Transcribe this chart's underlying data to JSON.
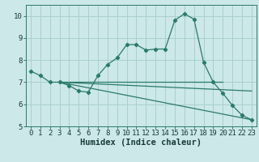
{
  "title": "",
  "xlabel": "Humidex (Indice chaleur)",
  "background_color": "#cce8e8",
  "grid_color": "#aacfcf",
  "line_color": "#2a7a6a",
  "ylim": [
    5,
    10.5
  ],
  "xlim": [
    -0.5,
    23.5
  ],
  "yticks": [
    5,
    6,
    7,
    8,
    9,
    10
  ],
  "xticks": [
    0,
    1,
    2,
    3,
    4,
    5,
    6,
    7,
    8,
    9,
    10,
    11,
    12,
    13,
    14,
    15,
    16,
    17,
    18,
    19,
    20,
    21,
    22,
    23
  ],
  "line1_x": [
    0,
    1,
    2,
    3,
    4,
    5,
    6,
    7,
    8,
    9,
    10,
    11,
    12,
    13,
    14,
    15,
    16,
    17,
    18,
    19,
    20,
    21,
    22,
    23
  ],
  "line1_y": [
    7.5,
    7.3,
    7.0,
    7.0,
    6.85,
    6.6,
    6.55,
    7.3,
    7.8,
    8.1,
    8.7,
    8.7,
    8.45,
    8.5,
    8.5,
    9.8,
    10.1,
    9.85,
    7.9,
    7.0,
    6.5,
    5.95,
    5.5,
    5.3
  ],
  "line2_x": [
    3,
    20
  ],
  "line2_y": [
    7.0,
    7.0
  ],
  "line3_x": [
    3,
    23
  ],
  "line3_y": [
    7.0,
    6.6
  ],
  "line4_x": [
    3,
    23
  ],
  "line4_y": [
    7.0,
    5.3
  ],
  "tick_fontsize": 6.5,
  "xlabel_fontsize": 7.5
}
